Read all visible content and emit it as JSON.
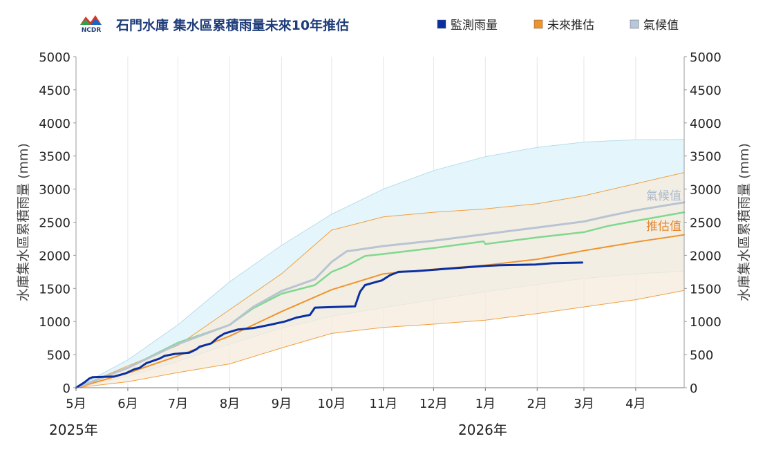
{
  "header": {
    "logo_text": "NCDR",
    "title": "石門水庫  集水區累積雨量未來10年推估"
  },
  "legend": [
    {
      "label": "監測雨量",
      "color": "#0a2fa0"
    },
    {
      "label": "未來推估",
      "color": "#f0932b"
    },
    {
      "label": "氣候值",
      "color": "#b8c8dc"
    }
  ],
  "band_labels": {
    "climate": "氣候值",
    "projection": "推估值"
  },
  "year_labels": [
    "2025年",
    "2026年"
  ],
  "chart_data": {
    "type": "line",
    "title": "石門水庫  集水區累積雨量未來10年推估",
    "ylabel": "水庫集水區累積雨量 (mm)",
    "ylabel_right": "水庫集水區累積雨量 (mm)",
    "ylim": [
      0,
      5000
    ],
    "yticks": [
      "0",
      "500",
      "1000",
      "1500",
      "2000",
      "2500",
      "3000",
      "3500",
      "4000",
      "4500",
      "5000"
    ],
    "xlim": [
      "2025-05-01",
      "2026-04-30"
    ],
    "xticks": [
      {
        "date": "2025-05-01",
        "label": "5月"
      },
      {
        "date": "2025-06-01",
        "label": "6月"
      },
      {
        "date": "2025-07-01",
        "label": "7月"
      },
      {
        "date": "2025-08-01",
        "label": "8月"
      },
      {
        "date": "2025-09-01",
        "label": "9月"
      },
      {
        "date": "2025-10-01",
        "label": "10月"
      },
      {
        "date": "2025-11-01",
        "label": "11月"
      },
      {
        "date": "2025-12-01",
        "label": "12月"
      },
      {
        "date": "2026-01-01",
        "label": "1月"
      },
      {
        "date": "2026-02-01",
        "label": "2月"
      },
      {
        "date": "2026-03-01",
        "label": "3月"
      },
      {
        "date": "2026-04-01",
        "label": "4月"
      }
    ],
    "grid": "vertical",
    "legend_position": "top",
    "bands": [
      {
        "name": "氣候值",
        "color": "#e4f6fc",
        "edge": "#b7dcea",
        "x": [
          "2025-05-01",
          "2025-06-01",
          "2025-07-01",
          "2025-08-01",
          "2025-09-01",
          "2025-10-01",
          "2025-11-01",
          "2025-12-01",
          "2026-01-01",
          "2026-02-01",
          "2026-03-01",
          "2026-04-01",
          "2026-04-30"
        ],
        "upper": [
          0,
          420,
          950,
          1600,
          2150,
          2620,
          3000,
          3280,
          3490,
          3630,
          3710,
          3745,
          3750
        ],
        "lower": [
          0,
          170,
          400,
          660,
          900,
          1080,
          1210,
          1330,
          1450,
          1560,
          1650,
          1720,
          1760
        ]
      },
      {
        "name": "推估值",
        "color": "#f7ebdc",
        "edge": "#f0a040",
        "x": [
          "2025-05-01",
          "2025-06-01",
          "2025-07-01",
          "2025-08-01",
          "2025-09-01",
          "2025-10-01",
          "2025-11-01",
          "2025-12-01",
          "2026-01-01",
          "2026-02-01",
          "2026-03-01",
          "2026-04-01",
          "2026-04-30"
        ],
        "upper": [
          0,
          330,
          640,
          1180,
          1720,
          2380,
          2580,
          2650,
          2700,
          2780,
          2900,
          3080,
          3250
        ],
        "lower": [
          0,
          90,
          230,
          360,
          600,
          820,
          910,
          960,
          1020,
          1120,
          1220,
          1330,
          1470
        ]
      }
    ],
    "series": [
      {
        "name": "監測雨量",
        "color": "#0a2fa0",
        "width": 3,
        "x": [
          "2025-05-01",
          "2025-05-06",
          "2025-05-09",
          "2025-05-11",
          "2025-05-24",
          "2025-05-31",
          "2025-06-05",
          "2025-06-08",
          "2025-06-12",
          "2025-06-20",
          "2025-06-23",
          "2025-06-29",
          "2025-07-08",
          "2025-07-12",
          "2025-07-14",
          "2025-07-21",
          "2025-07-25",
          "2025-07-29",
          "2025-08-02",
          "2025-08-06",
          "2025-08-15",
          "2025-08-25",
          "2025-09-03",
          "2025-09-10",
          "2025-09-18",
          "2025-09-21",
          "2025-10-15",
          "2025-10-18",
          "2025-10-21",
          "2025-10-28",
          "2025-10-31",
          "2025-11-05",
          "2025-11-10",
          "2025-11-20",
          "2026-01-01",
          "2026-01-10",
          "2026-01-31",
          "2026-02-10",
          "2026-02-28"
        ],
        "y": [
          0,
          80,
          140,
          160,
          170,
          220,
          280,
          300,
          370,
          440,
          480,
          510,
          530,
          580,
          620,
          670,
          760,
          820,
          850,
          880,
          900,
          950,
          1000,
          1060,
          1100,
          1210,
          1230,
          1450,
          1550,
          1600,
          1620,
          1700,
          1750,
          1760,
          1840,
          1850,
          1860,
          1880,
          1890
        ]
      },
      {
        "name": "未來推估",
        "color": "#f0932b",
        "width": 2,
        "x": [
          "2025-05-01",
          "2025-06-01",
          "2025-07-01",
          "2025-08-01",
          "2025-09-01",
          "2025-10-01",
          "2025-11-01",
          "2025-12-01",
          "2026-01-01",
          "2026-02-01",
          "2026-03-01",
          "2026-04-01",
          "2026-04-30"
        ],
        "y": [
          0,
          220,
          480,
          780,
          1150,
          1480,
          1720,
          1790,
          1850,
          1940,
          2070,
          2200,
          2310
        ]
      },
      {
        "name": "",
        "color": "#7fd88e",
        "width": 2.5,
        "x": [
          "2025-05-01",
          "2025-06-01",
          "2025-07-01",
          "2025-08-01",
          "2025-08-15",
          "2025-09-01",
          "2025-09-21",
          "2025-10-01",
          "2025-10-10",
          "2025-10-21",
          "2025-11-01",
          "2025-12-01",
          "2025-12-31",
          "2026-01-01",
          "2026-02-01",
          "2026-03-01",
          "2026-03-15",
          "2026-04-01",
          "2026-04-30"
        ],
        "y": [
          0,
          300,
          680,
          950,
          1200,
          1420,
          1550,
          1750,
          1840,
          1990,
          2020,
          2110,
          2210,
          2170,
          2270,
          2350,
          2440,
          2520,
          2650
        ]
      },
      {
        "name": "",
        "color": "#b8c4d2",
        "width": 3,
        "x": [
          "2025-05-01",
          "2025-06-01",
          "2025-07-01",
          "2025-08-01",
          "2025-08-15",
          "2025-09-01",
          "2025-09-21",
          "2025-10-01",
          "2025-10-10",
          "2025-11-01",
          "2025-12-01",
          "2026-01-01",
          "2026-02-01",
          "2026-03-01",
          "2026-03-15",
          "2026-04-01",
          "2026-04-30"
        ],
        "y": [
          0,
          300,
          660,
          950,
          1220,
          1460,
          1640,
          1900,
          2060,
          2140,
          2220,
          2320,
          2420,
          2510,
          2590,
          2680,
          2800
        ]
      }
    ]
  }
}
